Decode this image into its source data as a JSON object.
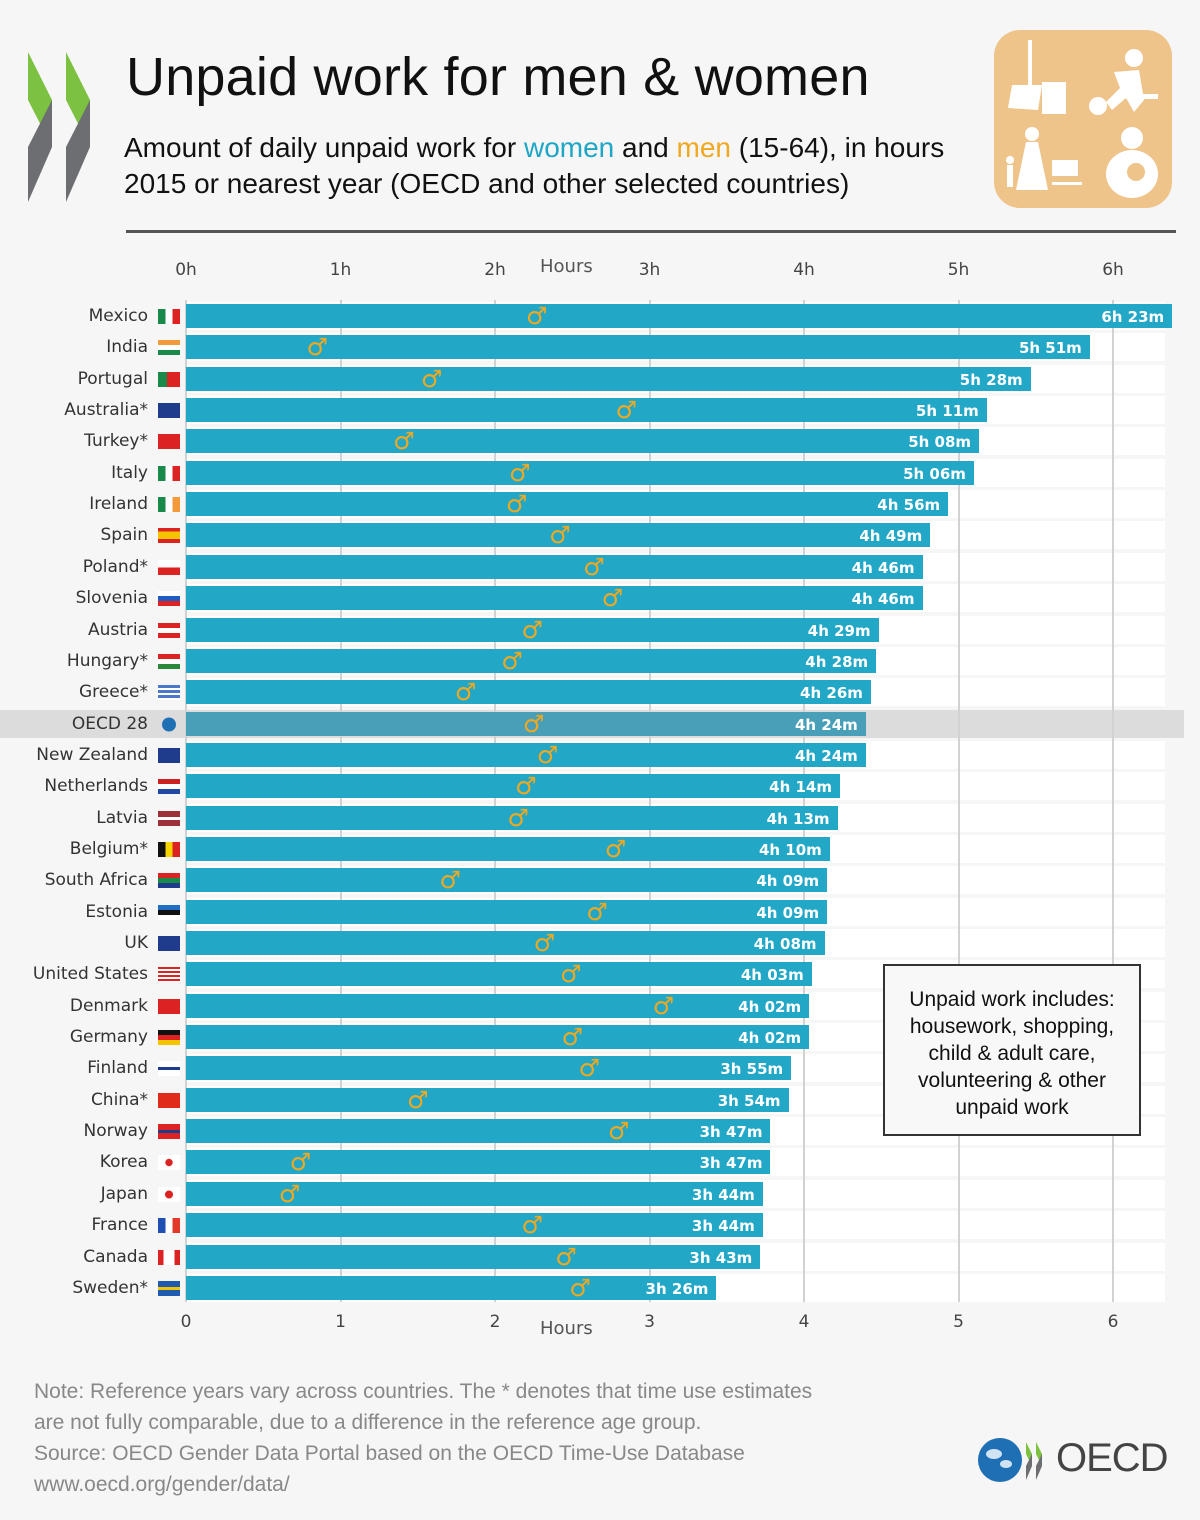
{
  "header": {
    "title": "Unpaid work for men & women",
    "subtitle_line1_pre": "Amount of daily unpaid work for ",
    "subtitle_women": "women",
    "subtitle_and": " and ",
    "subtitle_men": "men",
    "subtitle_line1_post": " (15-64), in hours",
    "subtitle_line2": "2015 or nearest year (OECD and other selected countries)",
    "icon_box_icons": [
      "broom-icon",
      "vacuum-cleaner-icon",
      "shopping-cart-icon",
      "child-care-icon"
    ]
  },
  "colors": {
    "women": "#22a7c7",
    "men": "#f0a820",
    "oecd_highlight": "#4a9fb8",
    "icon_box": "#eec48a"
  },
  "note_box": {
    "line1": "Unpaid work includes:",
    "line2": "housework, shopping,",
    "line3": "child & adult care,",
    "line4": "volunteering & other",
    "line5": "unpaid work"
  },
  "footer": {
    "note1": "Note: Reference years vary across countries. The * denotes that time use estimates",
    "note2": "are not fully comparable, due to a difference in the reference age group.",
    "source": "Source: OECD Gender Data Portal based on the OECD Time-Use Database",
    "url": "www.oecd.org/gender/data/",
    "logo_text": "OECD"
  },
  "chart_data": {
    "type": "bar",
    "orientation": "horizontal",
    "title": "Unpaid work for men & women",
    "xlabel": "Hours",
    "ylabel": "",
    "xlim": [
      0,
      6.4
    ],
    "grid": true,
    "top_tick_labels": [
      "0h",
      "1h",
      "2h",
      "3h",
      "4h",
      "5h",
      "6h"
    ],
    "bottom_tick_labels": [
      "0",
      "1",
      "2",
      "3",
      "4",
      "5",
      "6"
    ],
    "top_axis_title": "Hours",
    "bottom_axis_title": "Hours",
    "male_symbol": "♂",
    "highlight_category": "OECD 28",
    "categories": [
      "Mexico",
      "India",
      "Portugal",
      "Australia*",
      "Turkey*",
      "Italy",
      "Ireland",
      "Spain",
      "Poland*",
      "Slovenia",
      "Austria",
      "Hungary*",
      "Greece*",
      "OECD 28",
      "New Zealand",
      "Netherlands",
      "Latvia",
      "Belgium*",
      "South Africa",
      "Estonia",
      "UK",
      "United States",
      "Denmark",
      "Germany",
      "Finland",
      "China*",
      "Norway",
      "Korea",
      "Japan",
      "France",
      "Canada",
      "Sweden*"
    ],
    "flags": [
      "flag-mexico-icon",
      "flag-india-icon",
      "flag-portugal-icon",
      "flag-australia-icon",
      "flag-turkey-icon",
      "flag-italy-icon",
      "flag-ireland-icon",
      "flag-spain-icon",
      "flag-poland-icon",
      "flag-slovenia-icon",
      "flag-austria-icon",
      "flag-hungary-icon",
      "flag-greece-icon",
      "oecd-globe-icon",
      "flag-new-zealand-icon",
      "flag-netherlands-icon",
      "flag-latvia-icon",
      "flag-belgium-icon",
      "flag-south-africa-icon",
      "flag-estonia-icon",
      "flag-uk-icon",
      "flag-united-states-icon",
      "flag-denmark-icon",
      "flag-germany-icon",
      "flag-finland-icon",
      "flag-china-icon",
      "flag-norway-icon",
      "flag-korea-icon",
      "flag-japan-icon",
      "flag-france-icon",
      "flag-canada-icon",
      "flag-sweden-icon"
    ],
    "series": [
      {
        "name": "women",
        "labels": [
          "6h 23m",
          "5h 51m",
          "5h 28m",
          "5h 11m",
          "5h 08m",
          "5h 06m",
          "4h 56m",
          "4h 49m",
          "4h 46m",
          "4h 46m",
          "4h 29m",
          "4h 28m",
          "4h 26m",
          "4h 24m",
          "4h 24m",
          "4h 14m",
          "4h 13m",
          "4h 10m",
          "4h 09m",
          "4h 09m",
          "4h 08m",
          "4h 03m",
          "4h 02m",
          "4h 02m",
          "3h 55m",
          "3h 54m",
          "3h 47m",
          "3h 47m",
          "3h 44m",
          "3h 44m",
          "3h 43m",
          "3h 26m"
        ],
        "values": [
          6.383,
          5.85,
          5.467,
          5.183,
          5.133,
          5.1,
          4.933,
          4.817,
          4.767,
          4.767,
          4.483,
          4.467,
          4.433,
          4.4,
          4.4,
          4.233,
          4.217,
          4.167,
          4.15,
          4.15,
          4.133,
          4.05,
          4.033,
          4.033,
          3.917,
          3.9,
          3.783,
          3.783,
          3.733,
          3.733,
          3.717,
          3.433
        ]
      },
      {
        "name": "men",
        "values": [
          2.27,
          0.85,
          1.59,
          2.85,
          1.41,
          2.16,
          2.14,
          2.42,
          2.64,
          2.76,
          2.24,
          2.11,
          1.81,
          2.25,
          2.34,
          2.2,
          2.15,
          2.78,
          1.71,
          2.66,
          2.32,
          2.49,
          3.09,
          2.5,
          2.61,
          1.5,
          2.8,
          0.74,
          0.67,
          2.24,
          2.46,
          2.55
        ]
      }
    ]
  }
}
